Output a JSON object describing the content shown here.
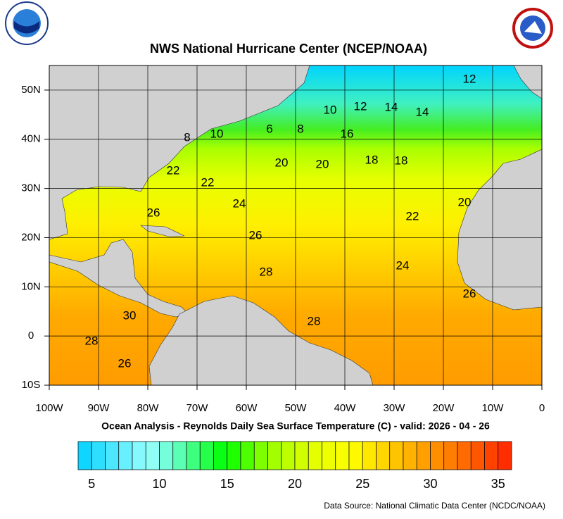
{
  "title": "NWS National Hurricane Center (NCEP/NOAA)",
  "map": {
    "xlim": [
      -100,
      0
    ],
    "ylim": [
      -10,
      55
    ],
    "xticks": [
      {
        "value": -100,
        "label": "100W"
      },
      {
        "value": -90,
        "label": "90W"
      },
      {
        "value": -80,
        "label": "80W"
      },
      {
        "value": -70,
        "label": "70W"
      },
      {
        "value": -60,
        "label": "60W"
      },
      {
        "value": -50,
        "label": "50W"
      },
      {
        "value": -40,
        "label": "40W"
      },
      {
        "value": -30,
        "label": "30W"
      },
      {
        "value": -20,
        "label": "20W"
      },
      {
        "value": -10,
        "label": "10W"
      },
      0
    ],
    "yticks": [
      {
        "value": -10,
        "label": "10S"
      },
      0,
      {
        "value": 10,
        "label": "10N"
      },
      {
        "value": 20,
        "label": "20N"
      },
      {
        "value": 30,
        "label": "30N"
      },
      {
        "value": 40,
        "label": "40N"
      },
      {
        "value": 50,
        "label": "50N"
      }
    ],
    "contour_labels": [
      12,
      10,
      12,
      14,
      14,
      8,
      10,
      6,
      8,
      16,
      20,
      20,
      18,
      18,
      22,
      22,
      26,
      24,
      22,
      20,
      26,
      28,
      24,
      26,
      30,
      28,
      28,
      26
    ]
  },
  "subtitle": "Ocean Analysis - Reynolds Daily Sea Surface Temperature (C) - valid: 2026 - 04 - 26",
  "colorbar": {
    "lim": [
      4,
      36
    ],
    "ticks": [
      5,
      10,
      15,
      20,
      25,
      30,
      35
    ]
  },
  "source": "Data Source: National Climatic Data Center (NCDC/NOAA)"
}
